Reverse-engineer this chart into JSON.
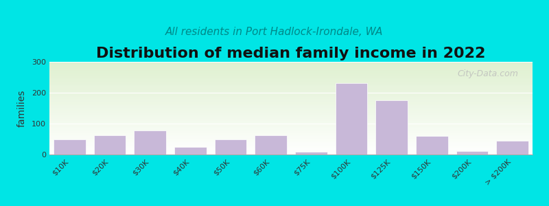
{
  "title": "Distribution of median family income in 2022",
  "subtitle": "All residents in Port Hadlock-Irondale, WA",
  "ylabel": "families",
  "bar_color": "#c8b8d8",
  "bar_edgecolor": "#ffffff",
  "background_color": "#00e5e5",
  "plot_bg_top": "#dff0d0",
  "plot_bg_bottom": "#ffffff",
  "ylim": [
    0,
    300
  ],
  "yticks": [
    0,
    100,
    200,
    300
  ],
  "categories": [
    "$10K",
    "$20K",
    "$30K",
    "$40K",
    "$50K",
    "$60K",
    "$75K",
    "$100K",
    "$125K",
    "$150K",
    "$200K",
    "> $200K"
  ],
  "values": [
    50,
    62,
    78,
    25,
    50,
    62,
    8,
    232,
    175,
    60,
    12,
    45
  ],
  "watermark": "City-Data.com",
  "title_fontsize": 16,
  "subtitle_fontsize": 11,
  "ylabel_fontsize": 10
}
